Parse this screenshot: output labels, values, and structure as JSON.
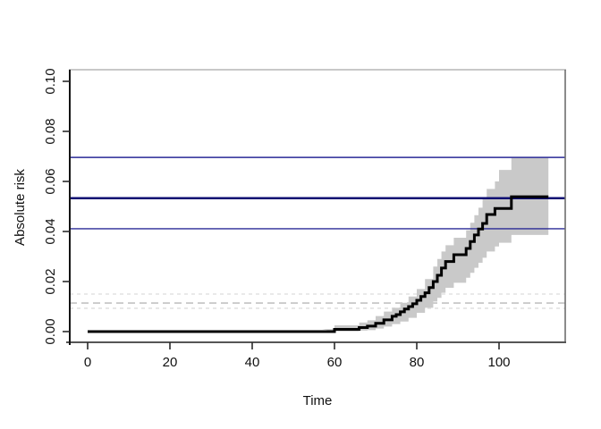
{
  "chart_data": {
    "type": "line",
    "subtype": "step-function-with-confidence-band",
    "title": "",
    "xlabel": "Time",
    "ylabel": "Absolute risk",
    "xlim": [
      0,
      115
    ],
    "ylim": [
      0,
      0.104
    ],
    "grid": "off",
    "x_ticks": [
      [
        0,
        "0"
      ],
      [
        20,
        "20"
      ],
      [
        40,
        "40"
      ],
      [
        60,
        "60"
      ],
      [
        80,
        "80"
      ],
      [
        100,
        "100"
      ]
    ],
    "y_ticks": [
      [
        0,
        "0.00"
      ],
      [
        0.02,
        "0.02"
      ],
      [
        0.04,
        "0.04"
      ],
      [
        0.06,
        "0.06"
      ],
      [
        0.08,
        "0.08"
      ],
      [
        0.1,
        "0.10"
      ]
    ],
    "series": [
      {
        "name": "absolute-risk-step-curve",
        "color": "#000000",
        "line_width": 3,
        "points_t_v": [
          [
            0,
            0
          ],
          [
            60,
            0.0009
          ],
          [
            66,
            0.0016
          ],
          [
            68,
            0.0022
          ],
          [
            70,
            0.0033
          ],
          [
            72,
            0.0047
          ],
          [
            74,
            0.0061
          ],
          [
            75,
            0.0068
          ],
          [
            76,
            0.0079
          ],
          [
            77,
            0.009
          ],
          [
            78,
            0.01
          ],
          [
            79,
            0.0111
          ],
          [
            80,
            0.0125
          ],
          [
            81,
            0.014
          ],
          [
            82,
            0.0155
          ],
          [
            83,
            0.0176
          ],
          [
            84,
            0.02
          ],
          [
            85,
            0.0225
          ],
          [
            86,
            0.0254
          ],
          [
            87,
            0.028
          ],
          [
            89,
            0.0307
          ],
          [
            92,
            0.0332
          ],
          [
            93,
            0.036
          ],
          [
            94,
            0.0386
          ],
          [
            95,
            0.041
          ],
          [
            96,
            0.0432
          ],
          [
            97,
            0.0468
          ],
          [
            99,
            0.0492
          ],
          [
            103,
            0.0539
          ],
          [
            112,
            0.0539
          ]
        ]
      }
    ],
    "confidence_band": {
      "name": "confidence-band",
      "color": "#c9c9c9",
      "points_t_lo_hi": [
        [
          57,
          0,
          0.001
        ],
        [
          60,
          0.0001,
          0.0025
        ],
        [
          66,
          0.0004,
          0.0036
        ],
        [
          68,
          0.0006,
          0.0045
        ],
        [
          70,
          0.0012,
          0.0062
        ],
        [
          72,
          0.002,
          0.008
        ],
        [
          74,
          0.003,
          0.0095
        ],
        [
          76,
          0.004,
          0.0115
        ],
        [
          78,
          0.0055,
          0.014
        ],
        [
          80,
          0.0075,
          0.017
        ],
        [
          82,
          0.0095,
          0.021
        ],
        [
          84,
          0.012,
          0.026
        ],
        [
          85,
          0.0135,
          0.029
        ],
        [
          86,
          0.0155,
          0.032
        ],
        [
          87,
          0.0175,
          0.0345
        ],
        [
          89,
          0.0195,
          0.0375
        ],
        [
          92,
          0.0215,
          0.0405
        ],
        [
          93,
          0.0235,
          0.0435
        ],
        [
          94,
          0.0255,
          0.0465
        ],
        [
          95,
          0.0275,
          0.0495
        ],
        [
          96,
          0.0295,
          0.053
        ],
        [
          97,
          0.032,
          0.057
        ],
        [
          99,
          0.034,
          0.06
        ],
        [
          100,
          0.0355,
          0.0646
        ],
        [
          103,
          0.0386,
          0.0696
        ],
        [
          112,
          0.0386,
          0.0696
        ]
      ]
    },
    "reference_lines_solid": [
      {
        "name": "upper-ci-reference-line",
        "value": 0.0696,
        "color": "#2a2a96",
        "width": 1.4
      },
      {
        "name": "estimate-reference-line",
        "value": 0.0533,
        "color": "#0d0d72",
        "width": 2.6
      },
      {
        "name": "lower-ci-reference-line",
        "value": 0.0411,
        "color": "#2a2a96",
        "width": 1.4
      }
    ],
    "reference_lines_dashed": [
      {
        "name": "dashed-upper-ci-line",
        "value": 0.015,
        "color": "#dcdcdc",
        "width": 1.3,
        "dash": "4 4"
      },
      {
        "name": "dashed-estimate-line",
        "value": 0.0114,
        "color": "#c3c3c3",
        "width": 1.6,
        "dash": "8 5"
      },
      {
        "name": "dashed-lower-ci-line",
        "value": 0.0093,
        "color": "#dcdcdc",
        "width": 1.3,
        "dash": "4 4"
      }
    ],
    "frame": {
      "top": "#c8c8c8",
      "right": "#6e6e6e",
      "bottom": "#565656",
      "left": "#141414"
    },
    "tick_color": "#2b2b2b"
  }
}
